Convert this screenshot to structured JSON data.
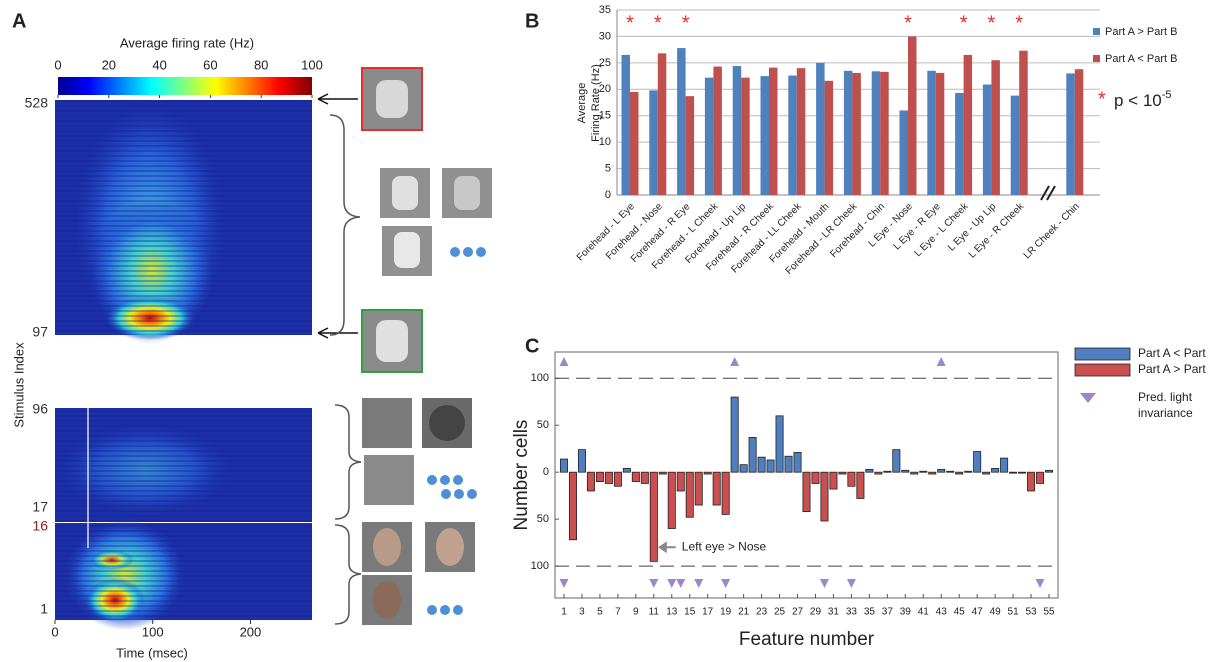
{
  "panel_a": {
    "panel": "A",
    "colorbar": {
      "title": "Average firing rate (Hz)",
      "lim": [
        0,
        100
      ],
      "ticks": [
        0,
        20,
        40,
        60,
        80,
        100
      ]
    },
    "y_labels": [
      528,
      97,
      96,
      17,
      16,
      1
    ],
    "y_title": "Stimulus Index",
    "x_title": "Time (msec)",
    "xlim": [
      0,
      263
    ],
    "xticks": [
      0,
      100,
      200
    ]
  },
  "chart_data": [
    {
      "type": "bar",
      "panel": "B",
      "ylabel": [
        "Average",
        "Firing Rate (Hz)"
      ],
      "categories": [
        "Forehead - L Eye",
        "Forehead - Nose",
        "Forehead - R Eye",
        "Forehead - L Cheek",
        "Forehead - Up Lip",
        "Forehead - R Cheek",
        "Forehead - LL Cheek",
        "Forehead - Mouth",
        "Forehead - LR Cheek",
        "Forehead - Chin",
        "L Eye - Nose",
        "L Eye - R Eye",
        "L Eye - L Cheek",
        "L Eye - Up Lip",
        "L Eye - R Cheek",
        null,
        "LR Cheek - Chin"
      ],
      "series": [
        {
          "name": "Part A > Part B",
          "color": "#4f81bd",
          "values": [
            26.5,
            19.8,
            27.8,
            22.2,
            24.4,
            22.5,
            22.6,
            25.0,
            23.5,
            23.4,
            16.0,
            23.5,
            19.3,
            20.9,
            18.8,
            null,
            23.0
          ]
        },
        {
          "name": "Part A < Part B",
          "color": "#c0504d",
          "values": [
            19.5,
            26.8,
            18.7,
            24.3,
            22.2,
            24.1,
            24.0,
            21.6,
            23.1,
            23.3,
            30.0,
            23.1,
            26.5,
            25.5,
            27.3,
            null,
            23.8
          ]
        }
      ],
      "ylim": [
        0,
        35
      ],
      "yticks": [
        0,
        5,
        10,
        15,
        20,
        25,
        30,
        35
      ],
      "grid": true,
      "legend": "right",
      "significance": {
        "label": "*",
        "color": "#e03030",
        "categories": [
          0,
          1,
          2,
          10,
          12,
          13,
          14
        ]
      },
      "note": {
        "symbol": "*",
        "text": "p < 10",
        "exponent": "-5"
      }
    },
    {
      "type": "bar",
      "panel": "C",
      "xlabel": "Feature number",
      "ylabel": "Number cells",
      "x": [
        1,
        2,
        3,
        4,
        5,
        6,
        7,
        8,
        9,
        10,
        11,
        12,
        13,
        14,
        15,
        16,
        17,
        18,
        19,
        20,
        21,
        22,
        23,
        24,
        25,
        26,
        27,
        28,
        29,
        30,
        31,
        32,
        33,
        34,
        35,
        36,
        37,
        38,
        39,
        40,
        41,
        42,
        43,
        44,
        45,
        46,
        47,
        48,
        49,
        50,
        51,
        52,
        53,
        54,
        55
      ],
      "series": [
        {
          "name": "Part A < Part B",
          "color": "#4f7fbf",
          "values": [
            14,
            null,
            24,
            null,
            null,
            null,
            null,
            4,
            null,
            null,
            null,
            null,
            null,
            null,
            null,
            null,
            null,
            null,
            null,
            80,
            8,
            37,
            16,
            13,
            60,
            17,
            21,
            null,
            null,
            null,
            null,
            null,
            null,
            null,
            3,
            null,
            1,
            24,
            2,
            null,
            1,
            null,
            3,
            1,
            null,
            1,
            22,
            null,
            4,
            15,
            null,
            null,
            null,
            null,
            2
          ]
        },
        {
          "name": "Part A > Part B",
          "color": "#c9504f",
          "values": [
            null,
            -72,
            null,
            -20,
            -10,
            -12,
            -15,
            null,
            -10,
            -12,
            -95,
            -2,
            -60,
            -20,
            -48,
            -35,
            -2,
            -35,
            -45,
            null,
            null,
            null,
            null,
            null,
            null,
            null,
            null,
            -42,
            -12,
            -52,
            -18,
            -2,
            -15,
            -28,
            null,
            -2,
            null,
            null,
            null,
            -2,
            null,
            -2,
            null,
            null,
            -2,
            null,
            null,
            -2,
            null,
            null,
            -1,
            -1,
            -20,
            -12,
            null
          ]
        }
      ],
      "markers": {
        "label_lines": [
          "Pred. light",
          "invariance"
        ],
        "color": "#9b87cc",
        "top": [
          1,
          20,
          43
        ],
        "bottom": [
          1,
          11,
          13,
          14,
          16,
          19,
          30,
          33,
          54
        ]
      },
      "annotation": "Left eye > Nose",
      "xlim": [
        0,
        56
      ],
      "ylim": [
        -134,
        128
      ],
      "xticks": [
        1,
        3,
        5,
        7,
        9,
        11,
        13,
        15,
        17,
        19,
        21,
        23,
        25,
        27,
        29,
        31,
        33,
        35,
        37,
        39,
        41,
        43,
        45,
        47,
        49,
        51,
        53,
        55
      ],
      "yticks": [
        {
          "value": -100,
          "label": "100"
        },
        {
          "value": -50,
          "label": "50"
        },
        0,
        50,
        100
      ],
      "legend": "right"
    }
  ]
}
